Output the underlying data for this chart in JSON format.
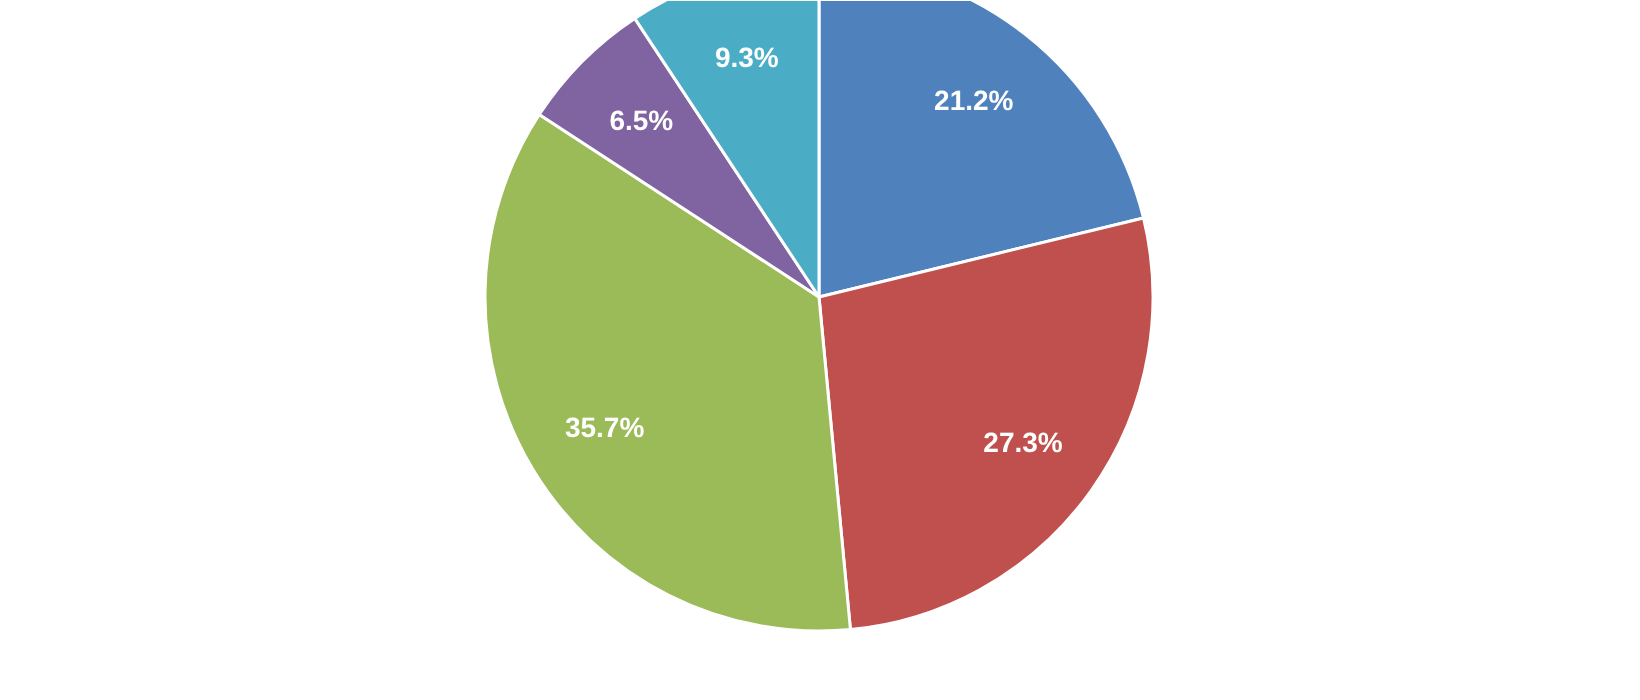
{
  "chart_data": {
    "type": "pie",
    "categories": [
      null,
      null,
      null,
      null,
      null
    ],
    "values": [
      21.2,
      27.3,
      35.7,
      6.5,
      9.3
    ],
    "colors": [
      "#4f81bd",
      "#c0504d",
      "#9bbb59",
      "#8064a2",
      "#4bacc6"
    ],
    "value_labels": [
      "21.2%",
      "27.3%",
      "35.7%",
      "6.5%",
      "9.3%"
    ]
  }
}
